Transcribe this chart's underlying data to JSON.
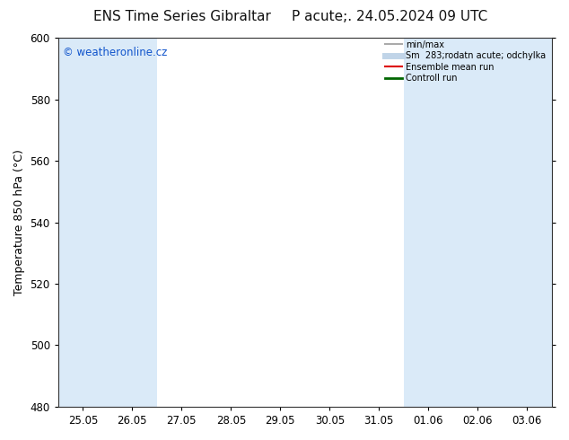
{
  "title_left": "ENS Time Series Gibraltar",
  "title_right": "P acute;. 24.05.2024 09 UTC",
  "ylabel": "Temperature 850 hPa (°C)",
  "watermark": "© weatheronline.cz",
  "watermark_color": "#1155cc",
  "ylim": [
    480,
    600
  ],
  "yticks": [
    480,
    500,
    520,
    540,
    560,
    580,
    600
  ],
  "xtick_labels": [
    "25.05",
    "26.05",
    "27.05",
    "28.05",
    "29.05",
    "30.05",
    "31.05",
    "01.06",
    "02.06",
    "03.06"
  ],
  "n_xticks": 10,
  "shaded_bands_idx": [
    0,
    1,
    7,
    8,
    9
  ],
  "band_color": "#daeaf8",
  "background_color": "#ffffff",
  "legend_labels": [
    "min/max",
    "Sm  283;rodatn acute; odchylka",
    "Ensemble mean run",
    "Controll run"
  ],
  "legend_colors": [
    "#aaaaaa",
    "#c0d4e8",
    "#dd0000",
    "#006600"
  ],
  "legend_lws": [
    1.5,
    5,
    1.5,
    2
  ],
  "title_fontsize": 11,
  "tick_fontsize": 8.5,
  "ylabel_fontsize": 9,
  "watermark_fontsize": 8.5
}
